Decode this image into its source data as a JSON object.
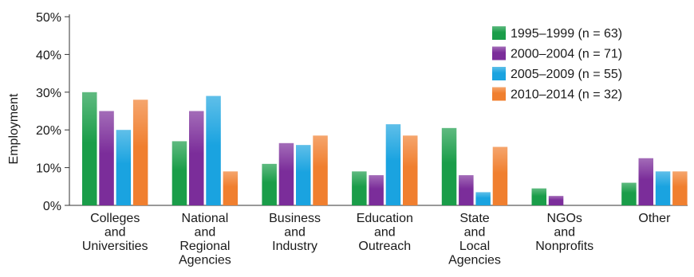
{
  "chart_data": {
    "type": "bar",
    "title": "",
    "xlabel": "",
    "ylabel": "Employment",
    "ylim": [
      0,
      50
    ],
    "yticks": [
      0,
      10,
      20,
      30,
      40,
      50
    ],
    "ytick_labels": [
      "0%",
      "10%",
      "20%",
      "30%",
      "40%",
      "50%"
    ],
    "grid": false,
    "legend_position": "top-right",
    "categories": [
      [
        "Colleges",
        "and",
        "Universities"
      ],
      [
        "National",
        "and",
        "Regional",
        "Agencies"
      ],
      [
        "Business",
        "and",
        "Industry"
      ],
      [
        "Education",
        "and",
        "Outreach"
      ],
      [
        "State",
        "and",
        "Local",
        "Agencies"
      ],
      [
        "NGOs",
        "and",
        "Nonprofits"
      ],
      [
        "Other"
      ]
    ],
    "series": [
      {
        "name": "1995–1999 (n = 63)",
        "color": "#1a9d49",
        "values": [
          30,
          17,
          11,
          9,
          20.5,
          4.5,
          6
        ]
      },
      {
        "name": "2000–2004 (n = 71)",
        "color": "#7b2d9a",
        "values": [
          25,
          25,
          16.5,
          8,
          8,
          2.5,
          12.5
        ]
      },
      {
        "name": "2005–2009 (n = 55)",
        "color": "#1aa3e0",
        "values": [
          20,
          29,
          16,
          21.5,
          3.5,
          0,
          9
        ]
      },
      {
        "name": "2010–2014 (n = 32)",
        "color": "#f07f2f",
        "values": [
          28,
          9,
          18.5,
          18.5,
          15.5,
          0,
          9
        ]
      }
    ]
  }
}
